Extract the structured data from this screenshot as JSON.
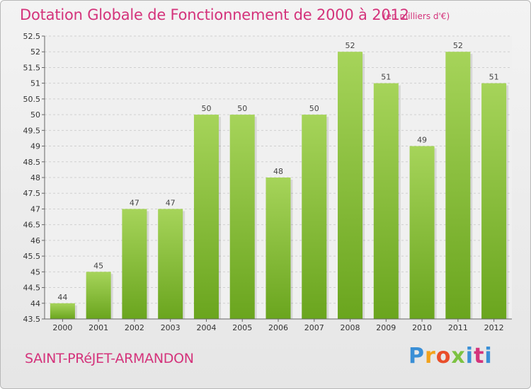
{
  "header": {
    "title": "Dotation Globale de Fonctionnement de 2000 à 2012",
    "unit": "(en milliers d'€)"
  },
  "footer": {
    "town": "SAINT-PRéJET-ARMANDON",
    "logo_letters": [
      "P",
      "r",
      "o",
      "x",
      "i",
      "t",
      "i"
    ]
  },
  "colors": {
    "title": "#d4337b",
    "bar_light": "#a6d45a",
    "bar_dark": "#6aa51e"
  },
  "chart_data": {
    "type": "bar",
    "categories": [
      "2000",
      "2001",
      "2002",
      "2003",
      "2004",
      "2005",
      "2006",
      "2007",
      "2008",
      "2009",
      "2010",
      "2011",
      "2012"
    ],
    "values": [
      44,
      45,
      47,
      47,
      50,
      50,
      48,
      50,
      52,
      51,
      49,
      52,
      51
    ],
    "title": "Dotation Globale de Fonctionnement de 2000 à 2012",
    "ylim": [
      43.5,
      52.5
    ],
    "yticks": [
      "43.5",
      "44",
      "44.5",
      "45",
      "45.5",
      "46",
      "46.5",
      "47",
      "47.5",
      "48",
      "48.5",
      "49",
      "49.5",
      "50",
      "50.5",
      "51",
      "51.5",
      "52",
      "52.5"
    ],
    "grid": true,
    "legend": "none"
  }
}
